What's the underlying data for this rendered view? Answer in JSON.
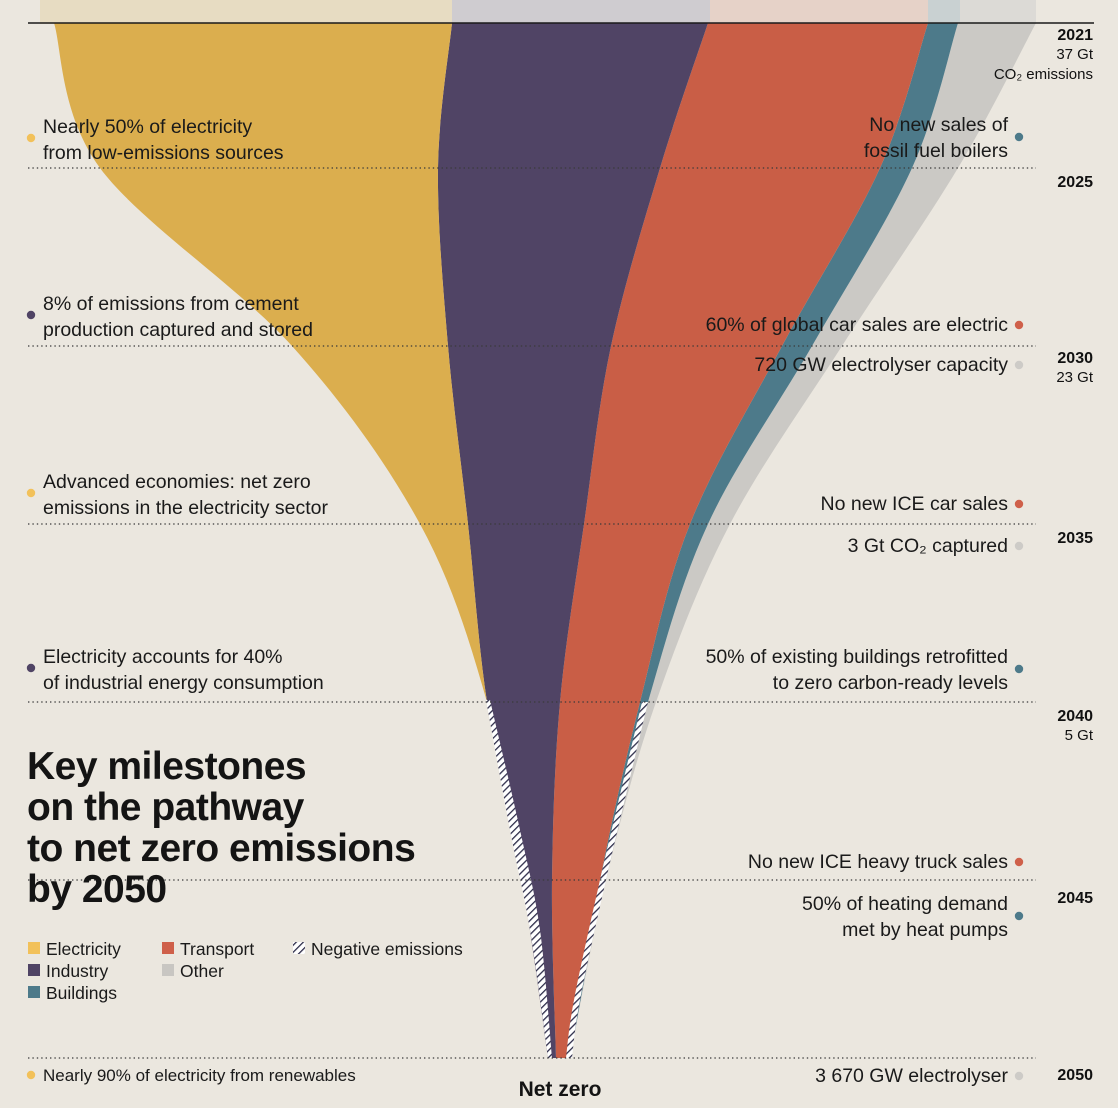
{
  "chart_data": {
    "type": "area",
    "title": "Key milestones on the pathway to net zero emissions by 2050",
    "title_lines": [
      "Key milestones",
      "on the pathway",
      "to net zero emissions",
      "by 2050"
    ],
    "x_axis": "year",
    "years": [
      2021,
      2025,
      2030,
      2035,
      2040,
      2045,
      2050
    ],
    "total_emissions_labels": [
      {
        "year": 2021,
        "value": "37 Gt",
        "unit": "CO₂ emissions"
      },
      {
        "year": 2030,
        "value": "23 Gt"
      },
      {
        "year": 2040,
        "value": "5 Gt"
      }
    ],
    "total_emissions_gt": [
      37,
      32,
      23,
      14,
      5,
      1.5,
      0
    ],
    "series": [
      {
        "name": "Electricity",
        "color": "#dbae4e",
        "values": [
          15.0,
          12.3,
          7.3,
          3.4,
          0.0,
          0.0,
          0.0
        ]
      },
      {
        "name": "Industry",
        "color": "#504465",
        "values": [
          9.3,
          8.9,
          7.5,
          5.6,
          3.9,
          1.6,
          0.05
        ]
      },
      {
        "name": "Transport",
        "color": "#c95e46",
        "values": [
          8.7,
          7.8,
          6.0,
          3.9,
          1.3,
          0.6,
          0.05
        ]
      },
      {
        "name": "Buildings",
        "color": "#4d7a8a",
        "values": [
          2.5,
          2.2,
          1.5,
          0.6,
          0.2,
          0.0,
          0.0
        ]
      },
      {
        "name": "Other",
        "color": "#c8c6c2",
        "values": [
          2.1,
          1.5,
          1.2,
          0.5,
          0.1,
          0.0,
          0.0
        ]
      }
    ],
    "negative_emissions": {
      "name": "Negative emissions",
      "pattern": "hatched"
    },
    "legend": [
      {
        "name": "Electricity",
        "color": "#f2c15a",
        "swatch": "square"
      },
      {
        "name": "Industry",
        "color": "#504465",
        "swatch": "square"
      },
      {
        "name": "Buildings",
        "color": "#4d7a8a",
        "swatch": "square"
      },
      {
        "name": "Transport",
        "color": "#cf604a",
        "swatch": "square"
      },
      {
        "name": "Other",
        "color": "#c8c6c2",
        "swatch": "square"
      },
      {
        "name": "Negative emissions",
        "color": "#555555",
        "swatch": "hatched"
      }
    ],
    "milestones_left": [
      {
        "year": 2025,
        "lines": [
          "Nearly 50% of electricity",
          "from low-emissions sources"
        ],
        "sector": "Electricity",
        "dot_color": "#f2c15a"
      },
      {
        "year": 2030,
        "lines": [
          "8% of emissions from cement",
          "production captured and stored"
        ],
        "sector": "Industry",
        "dot_color": "#504465"
      },
      {
        "year": 2035,
        "lines": [
          "Advanced economies: net zero",
          "emissions in the electricity sector"
        ],
        "sector": "Electricity",
        "dot_color": "#f2c15a"
      },
      {
        "year": 2040,
        "lines": [
          "Electricity accounts for 40%",
          "of industrial energy consumption"
        ],
        "sector": "Industry",
        "dot_color": "#504465"
      },
      {
        "year": 2050,
        "lines": [
          "Nearly 90% of electricity from renewables"
        ],
        "sector": "Electricity",
        "dot_color": "#f2c15a"
      }
    ],
    "milestones_right": [
      {
        "year": 2025,
        "lines": [
          "No new sales of",
          "fossil fuel boilers"
        ],
        "sector": "Buildings",
        "dot_color": "#4d7a8a"
      },
      {
        "year": 2030,
        "lines": [
          "60% of global car sales are electric"
        ],
        "sector": "Transport",
        "dot_color": "#cf604a"
      },
      {
        "year": 2030,
        "lines": [
          "720 GW electrolyser capacity"
        ],
        "sector": "Other",
        "dot_color": "#cdcbc7"
      },
      {
        "year": 2035,
        "lines": [
          "No new ICE car sales"
        ],
        "sector": "Transport",
        "dot_color": "#cf604a"
      },
      {
        "year": 2035,
        "lines": [
          "3 Gt CO₂ captured"
        ],
        "sector": "Other",
        "dot_color": "#cdcbc7"
      },
      {
        "year": 2040,
        "lines": [
          "50% of existing buildings retrofitted",
          "to zero carbon-ready levels"
        ],
        "sector": "Buildings",
        "dot_color": "#4d7a8a"
      },
      {
        "year": 2045,
        "lines": [
          "No new ICE heavy truck sales"
        ],
        "sector": "Transport",
        "dot_color": "#cf604a"
      },
      {
        "year": 2045,
        "lines": [
          "50% of heating demand",
          "met by heat pumps"
        ],
        "sector": "Buildings",
        "dot_color": "#4d7a8a"
      },
      {
        "year": 2050,
        "lines": [
          "3 670 GW electrolyser"
        ],
        "sector": "Other",
        "dot_color": "#cdcbc7"
      }
    ],
    "end_label": "Net zero",
    "background_color": "#ebe7df"
  }
}
